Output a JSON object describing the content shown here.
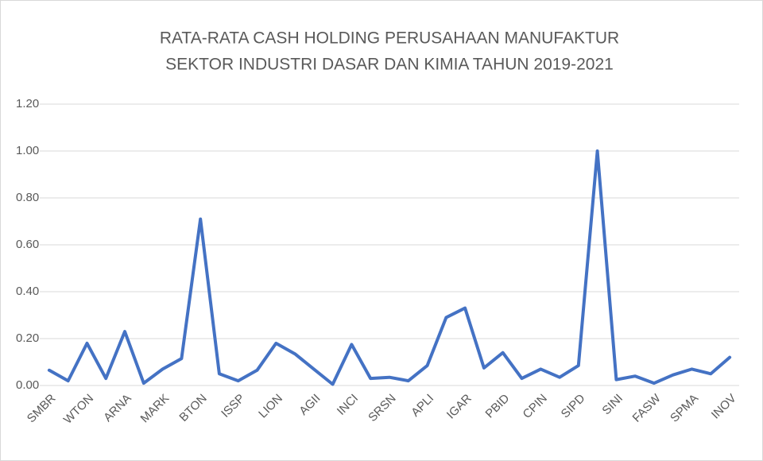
{
  "chart_data": {
    "type": "line",
    "title": [
      "RATA-RATA CASH HOLDING PERUSAHAAN MANUFAKTUR",
      "SEKTOR INDUSTRI DASAR DAN KIMIA TAHUN 2019-2021"
    ],
    "categories": [
      "SMBR",
      null,
      "WTON",
      null,
      "ARNA",
      null,
      "MARK",
      null,
      "BTON",
      null,
      "ISSP",
      null,
      "LION",
      null,
      "AGII",
      null,
      "INCI",
      null,
      "SRSN",
      null,
      "APLI",
      null,
      "IGAR",
      null,
      "PBID",
      null,
      "CPIN",
      null,
      "SIPD",
      null,
      "SINI",
      null,
      "FASW",
      null,
      "SPMA",
      null,
      "INOV"
    ],
    "values": [
      0.065,
      0.02,
      0.18,
      0.03,
      0.23,
      0.01,
      0.07,
      0.115,
      0.71,
      0.05,
      0.02,
      0.065,
      0.18,
      0.135,
      0.07,
      0.005,
      0.175,
      0.03,
      0.035,
      0.02,
      0.085,
      0.29,
      0.33,
      0.075,
      0.14,
      0.03,
      0.07,
      0.035,
      0.085,
      1.0,
      0.025,
      0.04,
      0.01,
      0.045,
      0.07,
      0.05,
      0.12
    ],
    "color": "#4472c4",
    "ylim": [
      0,
      1.2
    ],
    "yticks": [
      {
        "value": 0,
        "label": "0.00"
      },
      {
        "value": 0.2,
        "label": "0.20"
      },
      {
        "value": 0.4,
        "label": "0.40"
      },
      {
        "value": 0.6,
        "label": "0.60"
      },
      {
        "value": 0.8,
        "label": "0.80"
      },
      {
        "value": 1.0,
        "label": "1.00"
      },
      {
        "value": 1.2,
        "label": "1.20"
      }
    ],
    "grid": true
  }
}
